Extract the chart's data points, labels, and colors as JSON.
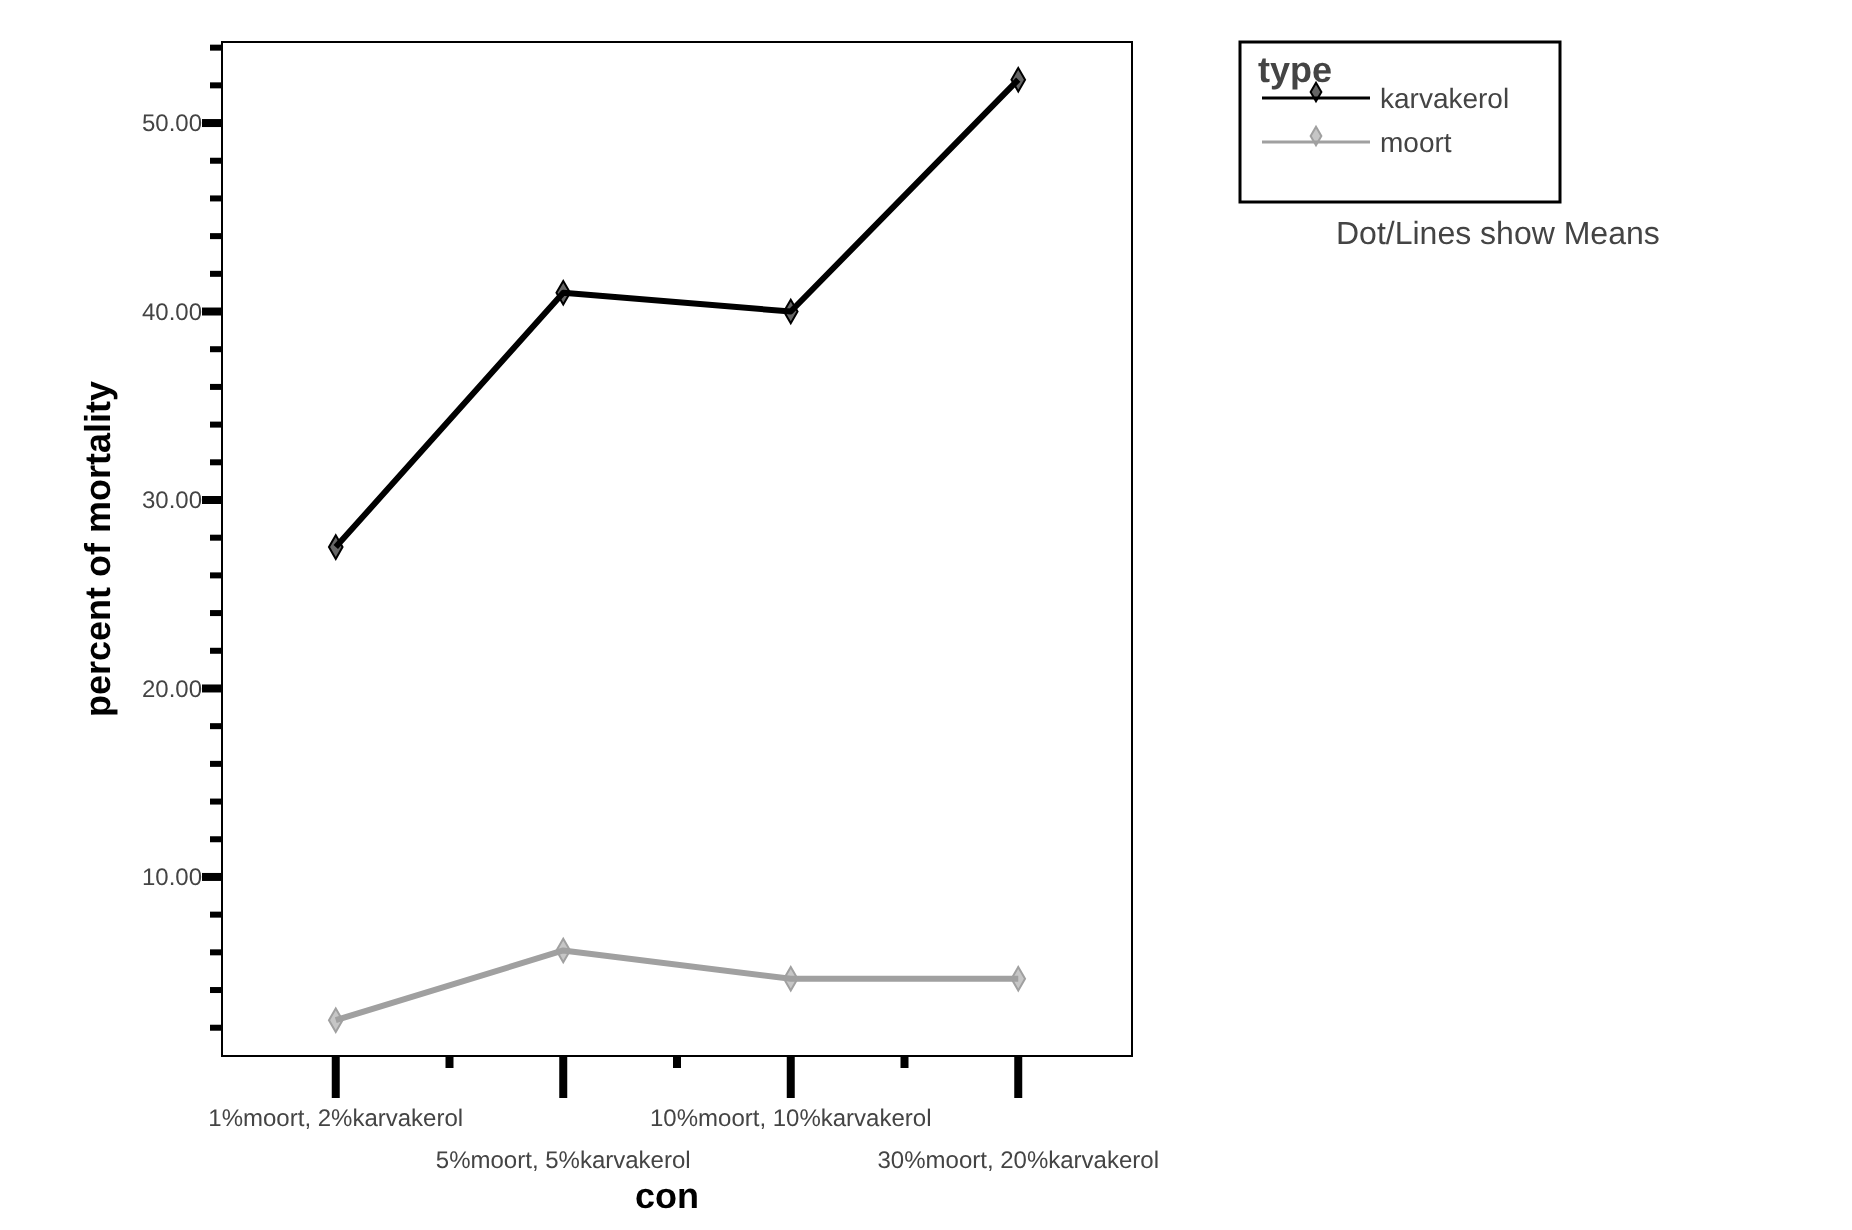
{
  "chart_data": {
    "type": "line",
    "xlabel": "con",
    "ylabel": "percent of mortality",
    "legend_title": "type",
    "categories": [
      "1%moort, 2%karvakerol",
      "5%moort, 5%karvakerol",
      "10%moort, 10%karvakerol",
      "30%moort, 20%karvakerol"
    ],
    "series": [
      {
        "name": "karvakerol",
        "color": "#000000",
        "values": [
          27.5,
          41,
          40,
          52.3
        ]
      },
      {
        "name": "moort",
        "color": "#a0a0a0",
        "values": [
          2.4,
          6.1,
          4.6,
          4.6
        ]
      }
    ],
    "ylim": [
      0.5,
      54.3
    ],
    "yticks": [
      {
        "value": 2,
        "label": null
      },
      {
        "value": 4,
        "label": null
      },
      {
        "value": 6,
        "label": null
      },
      {
        "value": 8,
        "label": null
      },
      {
        "value": 10,
        "label": "10.00"
      },
      {
        "value": 12,
        "label": null
      },
      {
        "value": 14,
        "label": null
      },
      {
        "value": 16,
        "label": null
      },
      {
        "value": 18,
        "label": null
      },
      {
        "value": 20,
        "label": "20.00"
      },
      {
        "value": 22,
        "label": null
      },
      {
        "value": 24,
        "label": null
      },
      {
        "value": 26,
        "label": null
      },
      {
        "value": 28,
        "label": null
      },
      {
        "value": 30,
        "label": "30.00"
      },
      {
        "value": 32,
        "label": null
      },
      {
        "value": 34,
        "label": null
      },
      {
        "value": 36,
        "label": null
      },
      {
        "value": 38,
        "label": null
      },
      {
        "value": 40,
        "label": "40.00"
      },
      {
        "value": 42,
        "label": null
      },
      {
        "value": 44,
        "label": null
      },
      {
        "value": 46,
        "label": null
      },
      {
        "value": 48,
        "label": null
      },
      {
        "value": 50,
        "label": "50.00"
      },
      {
        "value": 52,
        "label": null
      },
      {
        "value": 54,
        "label": null
      }
    ],
    "marker": "diamond",
    "line_style": "solid",
    "grid": false,
    "legend": "top right",
    "annotations": [
      "Dot/Lines show Means"
    ]
  }
}
